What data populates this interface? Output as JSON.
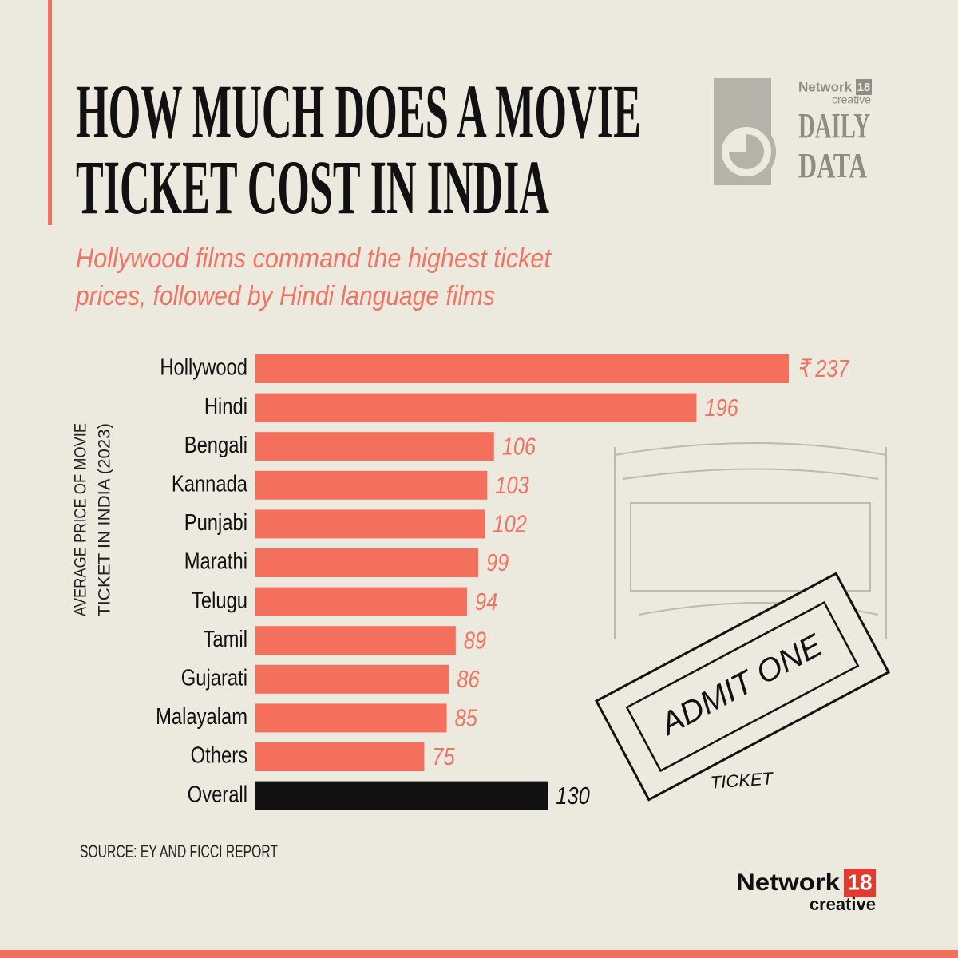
{
  "chart_data": {
    "type": "bar",
    "title": [
      "HOW MUCH DOES A MOVIE",
      "TICKET COST IN INDIA"
    ],
    "subtitle": [
      "Hollywood films command the highest ticket",
      "prices, followed by Hindi language films"
    ],
    "y_label": [
      "AVERAGE PRICE OF MOVIE",
      "TICKET IN INDIA (2023)"
    ],
    "categories": [
      "Hollywood",
      "Hindi",
      "Bengali",
      "Kannada",
      "Punjabi",
      "Marathi",
      "Telugu",
      "Tamil",
      "Gujarati",
      "Malayalam",
      "Others",
      "Overall"
    ],
    "values": [
      237,
      196,
      106,
      103,
      102,
      99,
      94,
      89,
      86,
      85,
      75,
      130
    ],
    "value_labels": [
      "₹ 237",
      "196",
      "106",
      "103",
      "102",
      "99",
      "94",
      "89",
      "86",
      "85",
      "75",
      "130"
    ],
    "colors": [
      "#f4705d",
      "#f4705d",
      "#f4705d",
      "#f4705d",
      "#f4705d",
      "#f4705d",
      "#f4705d",
      "#f4705d",
      "#f4705d",
      "#f4705d",
      "#f4705d",
      "#111111"
    ],
    "label_colors": [
      "#ef7463",
      "#ef7463",
      "#ef7463",
      "#ef7463",
      "#ef7463",
      "#ef7463",
      "#ef7463",
      "#ef7463",
      "#ef7463",
      "#ef7463",
      "#ef7463",
      "#111111"
    ],
    "source": "SOURCE: EY AND FICCI REPORT",
    "illustration": {
      "ticket": "ADMIT ONE",
      "caption": "TICKET"
    },
    "top_logo": {
      "brand": "Network",
      "number": "18",
      "tag": "creative",
      "series": [
        "DAILY",
        "DATA"
      ]
    },
    "bottom_logo": {
      "brand": "Network",
      "number": "18",
      "tag": "creative"
    }
  }
}
